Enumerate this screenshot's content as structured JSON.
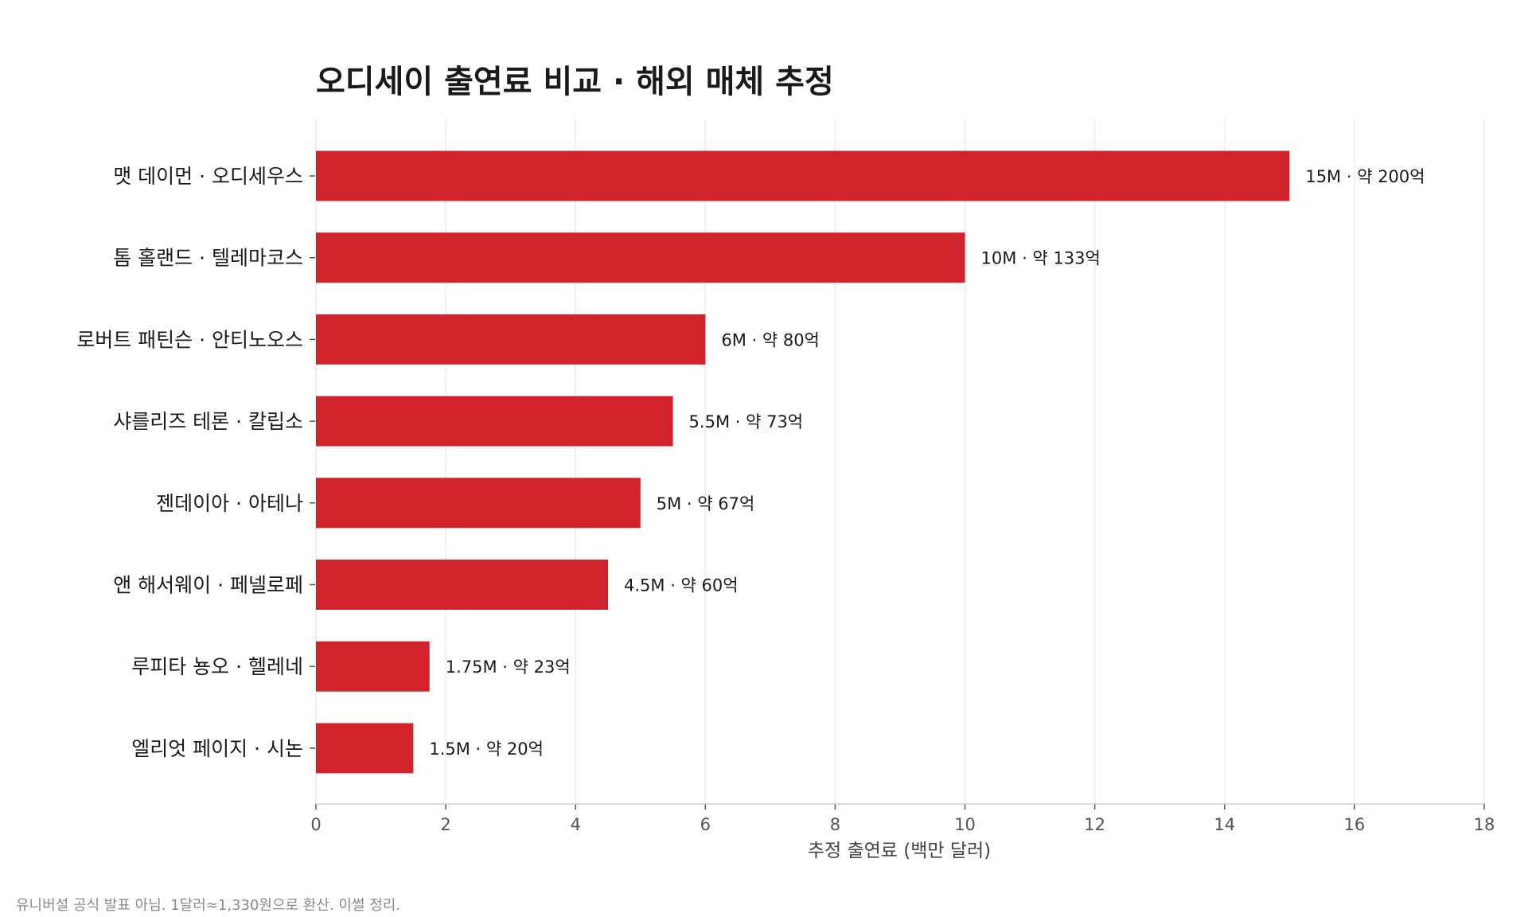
{
  "chart_data": {
    "type": "bar",
    "orientation": "horizontal",
    "title": "오디세이 출연료 비교 · 해외 매체 추정",
    "xlabel": "추정 출연료 (백만 달러)",
    "ylabel": "",
    "xlim": [
      0,
      18
    ],
    "x_ticks": [
      0,
      2,
      4,
      6,
      8,
      10,
      12,
      14,
      16,
      18
    ],
    "x_tick_labels": [
      "0",
      "2",
      "4",
      "6",
      "8",
      "10",
      "12",
      "14",
      "16",
      "18"
    ],
    "grid": "vertical",
    "legend": "none",
    "categories": [
      "맷 데이먼 · 오디세우스",
      "톰 홀랜드 · 텔레마코스",
      "로버트 패틴슨 · 안티노오스",
      "샤를리즈 테론 · 칼립소",
      "젠데이아 · 아테나",
      "앤 해서웨이 · 페넬로페",
      "루피타 뇽오 · 헬레네",
      "엘리엇 페이지 · 시논"
    ],
    "values": [
      15,
      10,
      6,
      5.5,
      5,
      4.5,
      1.75,
      1.5
    ],
    "data_labels": [
      "15M · 약 200억",
      "10M · 약 133억",
      "6M · 약 80억",
      "5.5M · 약 73억",
      "5M · 약 67억",
      "4.5M · 약 60억",
      "1.75M · 약 23억",
      "1.5M · 약 20억"
    ],
    "bar_color": "#d0232b"
  },
  "footnote": "유니버설 공식 발표 아님. 1달러≈1,330원으로 환산. 이썰 정리."
}
